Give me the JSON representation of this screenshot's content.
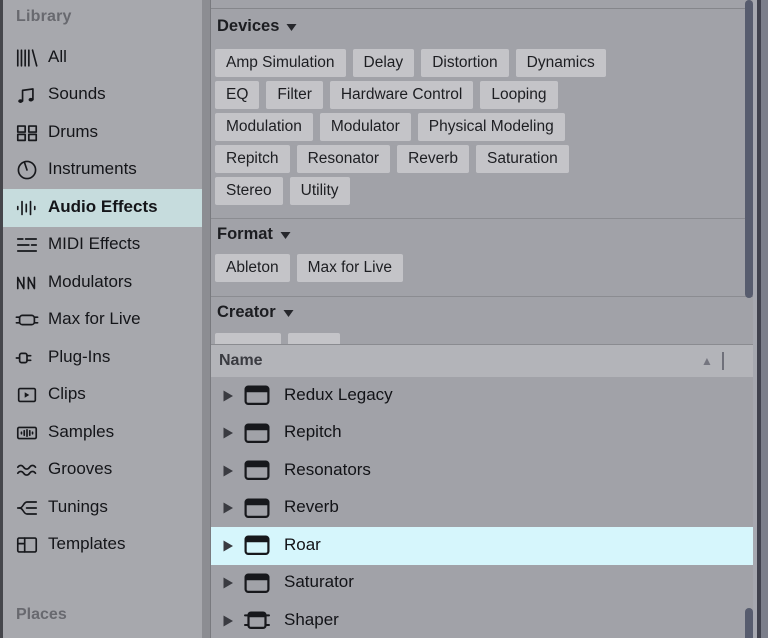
{
  "colors": {
    "sidebar_selection": "#c6dcdd",
    "list_selection": "#d6f6fc",
    "panel_background": "#a1a2a8",
    "tag_background": "#c4c4c8",
    "scrollbar_thumb": "#575c6e"
  },
  "sidebar": {
    "library_label": "Library",
    "places_label": "Places",
    "items": [
      {
        "label": "All",
        "icon": "all-icon",
        "selected": false
      },
      {
        "label": "Sounds",
        "icon": "sounds-icon",
        "selected": false
      },
      {
        "label": "Drums",
        "icon": "drums-icon",
        "selected": false
      },
      {
        "label": "Instruments",
        "icon": "instruments-icon",
        "selected": false
      },
      {
        "label": "Audio Effects",
        "icon": "audio-effects-icon",
        "selected": true
      },
      {
        "label": "MIDI Effects",
        "icon": "midi-effects-icon",
        "selected": false
      },
      {
        "label": "Modulators",
        "icon": "modulators-icon",
        "selected": false
      },
      {
        "label": "Max for Live",
        "icon": "max-for-live-icon",
        "selected": false
      },
      {
        "label": "Plug-Ins",
        "icon": "plug-ins-icon",
        "selected": false
      },
      {
        "label": "Clips",
        "icon": "clips-icon",
        "selected": false
      },
      {
        "label": "Samples",
        "icon": "samples-icon",
        "selected": false
      },
      {
        "label": "Grooves",
        "icon": "grooves-icon",
        "selected": false
      },
      {
        "label": "Tunings",
        "icon": "tunings-icon",
        "selected": false
      },
      {
        "label": "Templates",
        "icon": "templates-icon",
        "selected": false
      }
    ]
  },
  "filters": {
    "sections": [
      {
        "label": "Devices",
        "caret": "down",
        "tag_rows": [
          [
            "Amp Simulation",
            "Delay",
            "Distortion",
            "Dynamics"
          ],
          [
            "EQ",
            "Filter",
            "Hardware Control",
            "Looping"
          ],
          [
            "Modulation",
            "Modulator",
            "Physical Modeling"
          ],
          [
            "Repitch",
            "Resonator",
            "Reverb",
            "Saturation"
          ],
          [
            "Stereo",
            "Utility"
          ]
        ]
      },
      {
        "label": "Format",
        "caret": "down",
        "tag_rows": [
          [
            "Ableton",
            "Max for Live"
          ]
        ]
      },
      {
        "label": "Creator",
        "caret": "down",
        "tag_rows": [],
        "partial_tag_widths": [
          66,
          52
        ]
      }
    ]
  },
  "results": {
    "name_header": "Name",
    "sort_icon": "▲",
    "rows": [
      {
        "label": "Redux Legacy",
        "icon": "device-icon",
        "selected": false
      },
      {
        "label": "Repitch",
        "icon": "device-icon",
        "selected": false
      },
      {
        "label": "Resonators",
        "icon": "device-icon",
        "selected": false
      },
      {
        "label": "Reverb",
        "icon": "device-icon",
        "selected": false
      },
      {
        "label": "Roar",
        "icon": "device-icon",
        "selected": true
      },
      {
        "label": "Saturator",
        "icon": "device-icon",
        "selected": false
      },
      {
        "label": "Shaper",
        "icon": "m4l-device-icon",
        "selected": false
      }
    ]
  }
}
